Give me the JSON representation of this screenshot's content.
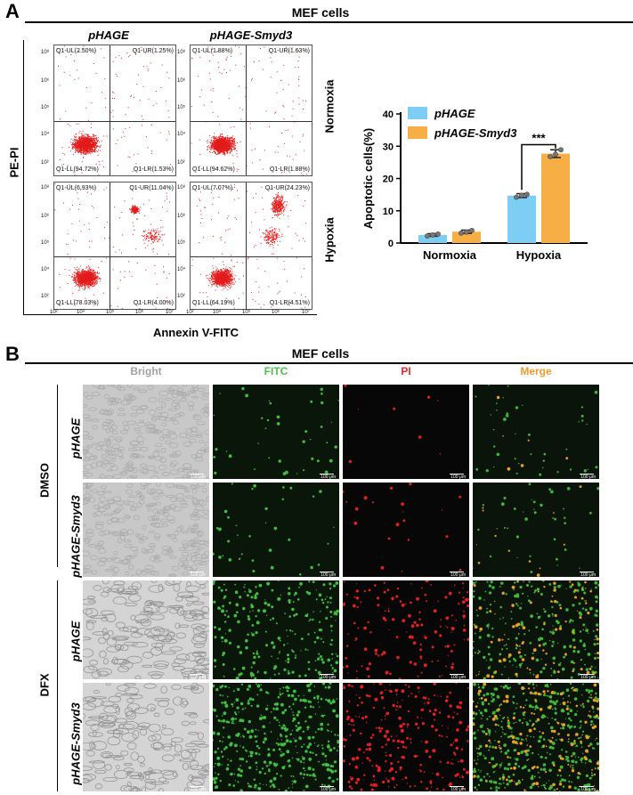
{
  "panelA": {
    "letter": "A",
    "header": "MEF cells",
    "ylabel": "PE-PI",
    "xlabel": "Annexin V-FITC",
    "col_labels": [
      "pHAGE",
      "pHAGE-Smyd3"
    ],
    "row_labels": [
      "Normoxia",
      "Hypoxia"
    ],
    "x_ticks": [
      "10²",
      "10⁴",
      "10⁵",
      "10⁶",
      "10⁷"
    ],
    "y_ticks": [
      "10⁸",
      "10⁶",
      "10⁵",
      "10⁴",
      "10³",
      "10²"
    ],
    "flow_plots": [
      {
        "UL": "Q1-UL(2.50%)",
        "UR": "Q1-UR(1.25%)",
        "LL": "Q1-LL(94.72%)",
        "LR": "Q1-LR(1.53%)"
      },
      {
        "UL": "Q1-UL(1.88%)",
        "UR": "Q1-UR(1.63%)",
        "LL": "Q1-LL(94.62%)",
        "LR": "Q1-LR(1.88%)"
      },
      {
        "UL": "Q1-UL(6.93%)",
        "UR": "Q1-UR(11.04%)",
        "LL": "Q1-LL(78.03%)",
        "LR": "Q1-LR(4.00%)"
      },
      {
        "UL": "Q1-UL(7.07%)",
        "UR": "Q1-UR(24.23%)",
        "LL": "Q1-LL(64.19%)",
        "LR": "Q1-LR(4.51%)"
      }
    ]
  },
  "chart_data": {
    "type": "bar",
    "categories": [
      "Normoxia",
      "Hypoxia"
    ],
    "series": [
      {
        "name": "pHAGE",
        "values": [
          2.5,
          14.7
        ],
        "errors": [
          0.4,
          0.6
        ],
        "points": [
          [
            2.2,
            2.5,
            2.8
          ],
          [
            14.2,
            14.8,
            15.1
          ]
        ],
        "color": "#7dcdf4"
      },
      {
        "name": "pHAGE-Smyd3",
        "values": [
          3.5,
          27.7
        ],
        "errors": [
          0.5,
          1.2
        ],
        "points": [
          [
            3.1,
            3.4,
            3.9
          ],
          [
            26.8,
            27.5,
            28.9
          ]
        ],
        "color": "#f7ae45"
      }
    ],
    "title": "",
    "xlabel": "",
    "ylabel": "Apoptotic cells(%)",
    "ylim": [
      0,
      40
    ],
    "yticks": [
      "0",
      "10",
      "20",
      "30",
      "40"
    ],
    "significance": "***",
    "legend": "top-left",
    "grid": false
  },
  "panelB": {
    "letter": "B",
    "header": "MEF cells",
    "columns": [
      {
        "label": "Bright",
        "color": "#a0a0a0"
      },
      {
        "label": "FITC",
        "color": "#4fc04a"
      },
      {
        "label": "PI",
        "color": "#e22a2a"
      },
      {
        "label": "Merge",
        "color": "#f39a2a"
      }
    ],
    "groups": [
      "DMSO",
      "DFX"
    ],
    "row_labels": [
      "pHAGE",
      "pHAGE-Smyd3",
      "pHAGE",
      "pHAGE-Smyd3"
    ],
    "scale_bar": "100 μm"
  }
}
